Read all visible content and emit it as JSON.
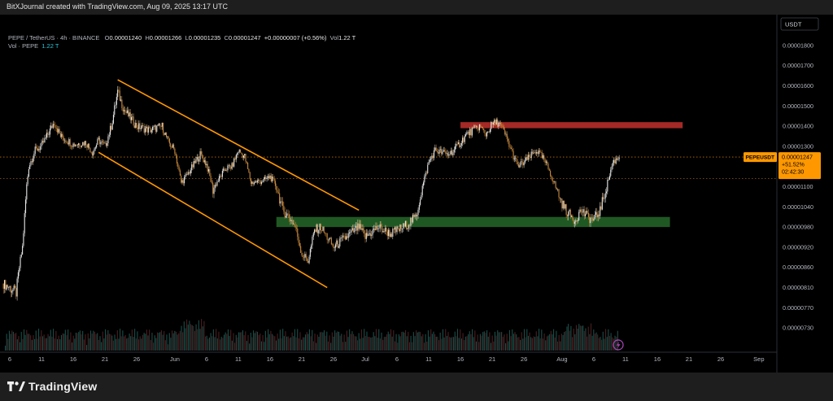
{
  "header": {
    "caption": "BitXJournal created with TradingView.com, Aug 09, 2025 13:17 UTC"
  },
  "legend": {
    "symbol": "PEPE / TetherUS · 4h · BINANCE",
    "o_label": "O",
    "o_value": "0.00001240",
    "h_label": "H",
    "h_value": "0.00001266",
    "l_label": "L",
    "l_value": "0.00001235",
    "c_label": "C",
    "c_value": "0.00001247",
    "change": "+0.00000007 (+0.56%)",
    "vol_label": "Vol",
    "vol_value": "1.22 T",
    "vol_row_label": "Vol · PEPE",
    "vol_row_value": "1.22 T"
  },
  "price_axis": {
    "currency": "USDT",
    "current": {
      "symbol": "PEPEUSDT",
      "price": "0.00001247",
      "change": "+51.52%",
      "countdown": "02:42:30"
    }
  },
  "footer": {
    "brand": "TradingView"
  },
  "chart_data": {
    "type": "candlestick",
    "y_ticks": [
      {
        "label": "0.00001800",
        "value": 1.8e-05
      },
      {
        "label": "0.00001700",
        "value": 1.7e-05
      },
      {
        "label": "0.00001600",
        "value": 1.6e-05
      },
      {
        "label": "0.00001500",
        "value": 1.5e-05
      },
      {
        "label": "0.00001400",
        "value": 1.4e-05
      },
      {
        "label": "0.00001300",
        "value": 1.3e-05
      },
      {
        "label": "0.00001100",
        "value": 1.1e-05
      },
      {
        "label": "0.00001040",
        "value": 1.04e-05
      },
      {
        "label": "0.00000980",
        "value": 9.8e-06
      },
      {
        "label": "0.00000920",
        "value": 9.2e-06
      },
      {
        "label": "0.00000860",
        "value": 8.6e-06
      },
      {
        "label": "0.00000810",
        "value": 8.1e-06
      },
      {
        "label": "0.00000770",
        "value": 7.7e-06
      },
      {
        "label": "0.00000730",
        "value": 7.3e-06
      }
    ],
    "x_ticks": [
      {
        "label": "6",
        "date": "2025-05-06"
      },
      {
        "label": "11",
        "date": "2025-05-11"
      },
      {
        "label": "16",
        "date": "2025-05-16"
      },
      {
        "label": "21",
        "date": "2025-05-21"
      },
      {
        "label": "26",
        "date": "2025-05-26"
      },
      {
        "label": "Jun",
        "date": "2025-06-01"
      },
      {
        "label": "6",
        "date": "2025-06-06"
      },
      {
        "label": "11",
        "date": "2025-06-11"
      },
      {
        "label": "16",
        "date": "2025-06-16"
      },
      {
        "label": "21",
        "date": "2025-06-21"
      },
      {
        "label": "26",
        "date": "2025-06-26"
      },
      {
        "label": "Jul",
        "date": "2025-07-01"
      },
      {
        "label": "6",
        "date": "2025-07-06"
      },
      {
        "label": "11",
        "date": "2025-07-11"
      },
      {
        "label": "16",
        "date": "2025-07-16"
      },
      {
        "label": "21",
        "date": "2025-07-21"
      },
      {
        "label": "26",
        "date": "2025-07-26"
      },
      {
        "label": "Aug",
        "date": "2025-08-01"
      },
      {
        "label": "6",
        "date": "2025-08-06"
      },
      {
        "label": "11",
        "date": "2025-08-11"
      },
      {
        "label": "16",
        "date": "2025-08-16"
      },
      {
        "label": "21",
        "date": "2025-08-21"
      },
      {
        "label": "26",
        "date": "2025-08-26"
      },
      {
        "label": "Sep",
        "date": "2025-09-01"
      }
    ],
    "price_path": [
      [
        "2025-05-05",
        8.2e-06
      ],
      [
        "2025-05-07",
        8e-06
      ],
      [
        "2025-05-08",
        9.2e-06
      ],
      [
        "2025-05-09",
        1.2e-05
      ],
      [
        "2025-05-10",
        1.28e-05
      ],
      [
        "2025-05-11",
        1.3e-05
      ],
      [
        "2025-05-13",
        1.42e-05
      ],
      [
        "2025-05-14",
        1.35e-05
      ],
      [
        "2025-05-16",
        1.31e-05
      ],
      [
        "2025-05-18",
        1.32e-05
      ],
      [
        "2025-05-19",
        1.27e-05
      ],
      [
        "2025-05-20",
        1.33e-05
      ],
      [
        "2025-05-21",
        1.3e-05
      ],
      [
        "2025-05-22",
        1.4e-05
      ],
      [
        "2025-05-23",
        1.57e-05
      ],
      [
        "2025-05-24",
        1.48e-05
      ],
      [
        "2025-05-26",
        1.4e-05
      ],
      [
        "2025-05-28",
        1.38e-05
      ],
      [
        "2025-05-30",
        1.4e-05
      ],
      [
        "2025-05-31",
        1.32e-05
      ],
      [
        "2025-06-01",
        1.28e-05
      ],
      [
        "2025-06-02",
        1.12e-05
      ],
      [
        "2025-06-03",
        1.16e-05
      ],
      [
        "2025-06-05",
        1.26e-05
      ],
      [
        "2025-06-06",
        1.21e-05
      ],
      [
        "2025-06-07",
        1.09e-05
      ],
      [
        "2025-06-09",
        1.19e-05
      ],
      [
        "2025-06-10",
        1.2e-05
      ],
      [
        "2025-06-11",
        1.28e-05
      ],
      [
        "2025-06-12",
        1.25e-05
      ],
      [
        "2025-06-13",
        1.12e-05
      ],
      [
        "2025-06-15",
        1.13e-05
      ],
      [
        "2025-06-16",
        1.15e-05
      ],
      [
        "2025-06-17",
        1.1e-05
      ],
      [
        "2025-06-18",
        1.03e-05
      ],
      [
        "2025-06-19",
        1.01e-05
      ],
      [
        "2025-06-20",
        9.8e-06
      ],
      [
        "2025-06-21",
        9e-06
      ],
      [
        "2025-06-22",
        8.8e-06
      ],
      [
        "2025-06-23",
        9.7e-06
      ],
      [
        "2025-06-24",
        9.8e-06
      ],
      [
        "2025-06-26",
        9.2e-06
      ],
      [
        "2025-06-28",
        9.5e-06
      ],
      [
        "2025-06-30",
        9.8e-06
      ],
      [
        "2025-07-01",
        9.5e-06
      ],
      [
        "2025-07-03",
        9.8e-06
      ],
      [
        "2025-07-05",
        9.6e-06
      ],
      [
        "2025-07-07",
        9.8e-06
      ],
      [
        "2025-07-09",
        1.01e-05
      ],
      [
        "2025-07-10",
        1.1e-05
      ],
      [
        "2025-07-11",
        1.22e-05
      ],
      [
        "2025-07-12",
        1.28e-05
      ],
      [
        "2025-07-13",
        1.27e-05
      ],
      [
        "2025-07-14",
        1.26e-05
      ],
      [
        "2025-07-15",
        1.28e-05
      ],
      [
        "2025-07-16",
        1.32e-05
      ],
      [
        "2025-07-17",
        1.36e-05
      ],
      [
        "2025-07-19",
        1.4e-05
      ],
      [
        "2025-07-20",
        1.36e-05
      ],
      [
        "2025-07-21",
        1.41e-05
      ],
      [
        "2025-07-22",
        1.42e-05
      ],
      [
        "2025-07-23",
        1.36e-05
      ],
      [
        "2025-07-24",
        1.28e-05
      ],
      [
        "2025-07-25",
        1.2e-05
      ],
      [
        "2025-07-26",
        1.22e-05
      ],
      [
        "2025-07-28",
        1.28e-05
      ],
      [
        "2025-07-29",
        1.24e-05
      ],
      [
        "2025-07-30",
        1.18e-05
      ],
      [
        "2025-07-31",
        1.1e-05
      ],
      [
        "2025-08-01",
        1.05e-05
      ],
      [
        "2025-08-02",
        1.02e-05
      ],
      [
        "2025-08-03",
        1e-05
      ],
      [
        "2025-08-04",
        1.03e-05
      ],
      [
        "2025-08-05",
        1.01e-05
      ],
      [
        "2025-08-06",
        1e-05
      ],
      [
        "2025-08-07",
        1.03e-05
      ],
      [
        "2025-08-08",
        1.1e-05
      ],
      [
        "2025-08-09",
        1.22e-05
      ],
      [
        "2025-08-10",
        1.247e-05
      ]
    ],
    "zones": [
      {
        "kind": "resistance",
        "color": "#e53935",
        "from": "2025-07-16",
        "to": "2025-08-20",
        "low": 1.39e-05,
        "high": 1.42e-05
      },
      {
        "kind": "support",
        "color": "#2e7d32",
        "from": "2025-06-17",
        "to": "2025-08-18",
        "low": 9.8e-06,
        "high": 1.01e-05
      }
    ],
    "channel_lines": [
      {
        "color": "#ff9800",
        "from": [
          "2025-05-23",
          1.63e-05
        ],
        "to": [
          "2025-06-30",
          1.03e-05
        ]
      },
      {
        "color": "#ff9800",
        "from": [
          "2025-05-20",
          1.27e-05
        ],
        "to": [
          "2025-06-25",
          8.1e-06
        ]
      }
    ],
    "reference_lines": [
      {
        "color": "#ff9800",
        "value": 1.247e-05
      },
      {
        "color": "#c77d2e",
        "value": 1.14e-05
      }
    ],
    "colors": {
      "up": "#e8e8e8",
      "down": "#c98a3c",
      "volume_up": "#1b4d47",
      "volume_down": "#4a1f22"
    }
  }
}
